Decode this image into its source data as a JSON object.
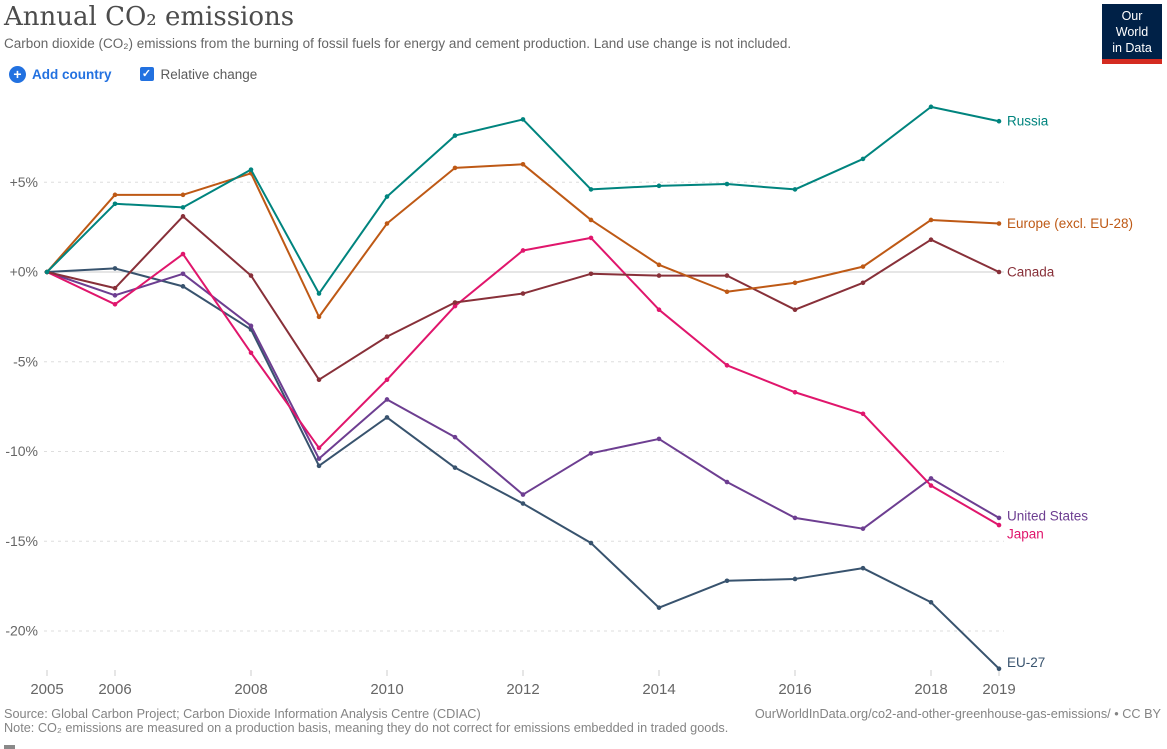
{
  "header": {
    "title": "Annual CO₂ emissions",
    "subtitle": "Carbon dioxide (CO₂) emissions from the burning of fossil fuels for energy and cement production. Land use change is not included.",
    "logo_line1": "Our World",
    "logo_line2": "in Data",
    "logo_bg": "#002147",
    "logo_bar": "#d42b21"
  },
  "controls": {
    "add_country_label": "Add country",
    "plus_glyph": "+",
    "relative_change_label": "Relative change",
    "relative_change_checked": true,
    "check_glyph": "✓",
    "accent_blue": "#2271e0"
  },
  "chart_data": {
    "type": "line",
    "title": "Annual CO₂ emissions (relative change)",
    "x": [
      2005,
      2006,
      2007,
      2008,
      2009,
      2010,
      2011,
      2012,
      2013,
      2014,
      2015,
      2016,
      2017,
      2018,
      2019
    ],
    "x_labeled_ticks": [
      2005,
      2006,
      2008,
      2010,
      2012,
      2014,
      2016,
      2018,
      2019
    ],
    "y_ticks": [
      5,
      0,
      -5,
      -10,
      -15,
      -20
    ],
    "y_tick_labels": [
      "+5%",
      "+0%",
      "-5%",
      "-10%",
      "-15%",
      "-20%"
    ],
    "ylim": [
      -23.2,
      10.6
    ],
    "unit": "%",
    "grid": "horizontal dashed, solid zero line",
    "legend_position": "line-end labels right",
    "axis_color": "#666666",
    "grid_color": "#dedede",
    "zero_line_color": "#cccccc",
    "series": [
      {
        "name": "EU-27",
        "color": "#38536e",
        "values": [
          0,
          0.2,
          -0.8,
          -3.2,
          -10.8,
          -8.1,
          -10.9,
          -12.9,
          -15.1,
          -18.7,
          -17.2,
          -17.1,
          -16.5,
          -18.4,
          -22.1
        ]
      },
      {
        "name": "United States",
        "color": "#6d3e91",
        "values": [
          0,
          -1.3,
          -0.1,
          -3.0,
          -10.4,
          -7.1,
          -9.2,
          -12.4,
          -10.1,
          -9.3,
          -11.7,
          -13.7,
          -14.3,
          -11.5,
          -13.7
        ]
      },
      {
        "name": "Japan",
        "color": "#e0166c",
        "values": [
          0,
          -1.8,
          1.0,
          -4.5,
          -9.8,
          -6.0,
          -1.9,
          1.2,
          1.9,
          -2.1,
          -5.2,
          -6.7,
          -7.9,
          -11.9,
          -14.1
        ]
      },
      {
        "name": "Canada",
        "color": "#883039",
        "values": [
          0,
          -0.9,
          3.1,
          -0.2,
          -6.0,
          -3.6,
          -1.7,
          -1.2,
          -0.1,
          -0.2,
          -0.2,
          -2.1,
          -0.6,
          1.8,
          0.0
        ]
      },
      {
        "name": "Europe (excl. EU-28)",
        "color": "#be5915",
        "values": [
          0,
          4.3,
          4.3,
          5.5,
          -2.5,
          2.7,
          5.8,
          6.0,
          2.9,
          0.4,
          -1.1,
          -0.6,
          0.3,
          2.9,
          2.7
        ]
      },
      {
        "name": "Russia",
        "color": "#00847e",
        "values": [
          0,
          3.8,
          3.6,
          5.7,
          -1.2,
          4.2,
          7.6,
          8.5,
          4.6,
          4.8,
          4.9,
          4.6,
          6.3,
          9.2,
          8.4
        ]
      }
    ]
  },
  "footer": {
    "source": "Source: Global Carbon Project; Carbon Dioxide Information Analysis Centre (CDIAC)",
    "note": "Note: CO₂ emissions are measured on a production basis, meaning they do not correct for emissions embedded in traded goods.",
    "link": "OurWorldInData.org/co2-and-other-greenhouse-gas-emissions/",
    "separator": " • ",
    "license": "CC BY"
  }
}
